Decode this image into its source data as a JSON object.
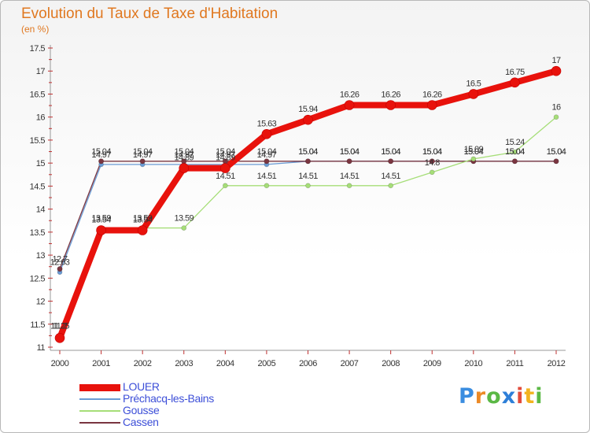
{
  "header": {
    "title": "Evolution du Taux de Taxe d'Habitation",
    "unit": "(en %)"
  },
  "logo": {
    "letters": [
      "P",
      "r",
      "o",
      "x",
      "i",
      "t",
      "i"
    ],
    "colors": [
      "#3a8de0",
      "#ec8a26",
      "#5bb845",
      "#2d7fd8",
      "#e24b3b",
      "#f2b31f",
      "#5bb845"
    ]
  },
  "chart_data": {
    "type": "line",
    "title": "Evolution du Taux de Taxe d'Habitation",
    "subtitle": "(en %)",
    "x": [
      "2000",
      "2001",
      "2002",
      "2003",
      "2004",
      "2005",
      "2006",
      "2007",
      "2008",
      "2009",
      "2010",
      "2011",
      "2012"
    ],
    "ylim": [
      11,
      17.5
    ],
    "yticks": [
      "11",
      "11.5",
      "12",
      "12.5",
      "13",
      "13.5",
      "14",
      "14.5",
      "15",
      "15.5",
      "16",
      "16.5",
      "17",
      "17.5"
    ],
    "grid": false,
    "legend": "bottom-left",
    "series": [
      {
        "name": "LOUER",
        "color": "#e8120c",
        "values": [
          11.2,
          13.54,
          13.54,
          14.89,
          14.89,
          15.63,
          15.94,
          16.26,
          16.26,
          16.26,
          16.5,
          16.75,
          17
        ],
        "labels": [
          "11.2",
          "13.54",
          "13.54",
          "14.89",
          "14.89",
          "15.63",
          "15.94",
          "16.26",
          "16.26",
          "16.26",
          "16.5",
          "16.75",
          "17"
        ]
      },
      {
        "name": "Préchacq-les-Bains",
        "color": "#6a9bd4",
        "values": [
          12.63,
          14.97,
          14.97,
          14.97,
          14.97,
          14.97,
          15.04,
          15.04,
          15.04,
          15.04,
          15.04,
          15.04,
          15.04
        ],
        "labels": [
          "12.63",
          "14.97",
          "14.97",
          "14.97",
          "14.97",
          "14.97",
          "15.04",
          "15.04",
          "15.04",
          "15.04",
          "15.04",
          "15.04",
          "15.04"
        ]
      },
      {
        "name": "Gousse",
        "color": "#a6de78",
        "values": [
          11.25,
          13.59,
          13.59,
          13.59,
          14.51,
          14.51,
          14.51,
          14.51,
          14.51,
          14.8,
          15.09,
          15.24,
          16
        ],
        "labels": [
          "11.25",
          "13.59",
          "13.59",
          "13.59",
          "14.51",
          "14.51",
          "14.51",
          "14.51",
          "14.51",
          "14.8",
          "15.09",
          "15.24",
          "16"
        ]
      },
      {
        "name": "Cassen",
        "color": "#7a3540",
        "values": [
          12.7,
          15.04,
          15.04,
          15.04,
          15.04,
          15.04,
          15.04,
          15.04,
          15.04,
          15.04,
          15.04,
          15.04,
          15.04
        ],
        "labels": [
          "12.7",
          "15.04",
          "15.04",
          "15.04",
          "15.04",
          "15.04",
          "15.04",
          "15.04",
          "15.04",
          "15.04",
          "15.04",
          "15.04",
          "15.04"
        ]
      }
    ]
  }
}
